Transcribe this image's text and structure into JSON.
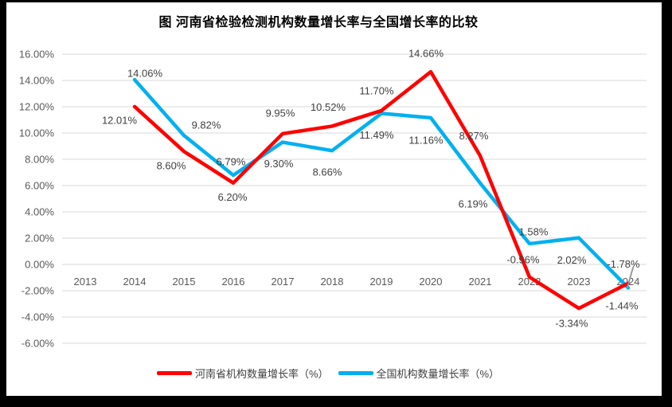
{
  "frame": {
    "border_color": "#000000",
    "canvas_background": "#ffffff"
  },
  "chart_data": {
    "type": "line",
    "title": "图  河南省检验检测机构数量增长率与全国增长率的比较",
    "categories": [
      "2013",
      "2014",
      "2015",
      "2016",
      "2017",
      "2018",
      "2019",
      "2020",
      "2021",
      "2022",
      "2023",
      "2024"
    ],
    "series": [
      {
        "name": "河南省机构数量增长率（%）",
        "color": "#FF0000",
        "values": [
          null,
          12.01,
          8.6,
          6.2,
          9.95,
          10.52,
          11.7,
          14.66,
          8.27,
          -0.96,
          -3.34,
          -1.44
        ]
      },
      {
        "name": "全国机构数量增长率（%）",
        "color": "#00B0F0",
        "values": [
          null,
          14.06,
          9.82,
          6.79,
          9.3,
          8.66,
          11.49,
          11.16,
          6.19,
          1.58,
          2.02,
          -1.78
        ]
      }
    ],
    "y_axis": {
      "tick_labels": [
        "16.00%",
        "14.00%",
        "12.00%",
        "10.00%",
        "8.00%",
        "6.00%",
        "4.00%",
        "2.00%",
        "0.00%",
        "-2.00%",
        "-4.00%",
        "-6.00%"
      ],
      "max": 16,
      "min": -6,
      "step": 2
    },
    "data_labels": true,
    "data_label_format": "0.00%",
    "grid": "horizontal",
    "legend_position": "bottom",
    "colors": {
      "gridline": "#D9D9D9",
      "axis_text": "#595959",
      "data_label_text": "#404040",
      "title_text": "#000000",
      "cursor": "#999999"
    }
  }
}
